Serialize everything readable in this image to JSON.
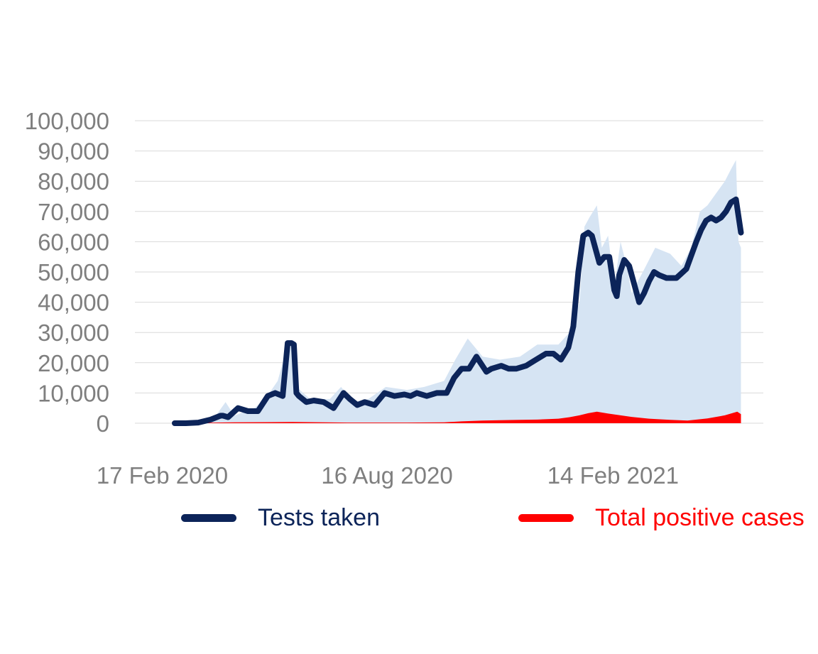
{
  "chart_data": {
    "type": "area",
    "title": "",
    "xlabel": "",
    "ylabel": "",
    "ylim": [
      0,
      100000
    ],
    "yticks": [
      "0",
      "10,000",
      "20,000",
      "30,000",
      "40,000",
      "50,000",
      "60,000",
      "70,000",
      "80,000",
      "90,000",
      "100,000"
    ],
    "ytick_values": [
      0,
      10000,
      20000,
      30000,
      40000,
      50000,
      60000,
      70000,
      80000,
      90000,
      100000
    ],
    "xlim": [
      "2020-01-26",
      "2021-06-15"
    ],
    "xticks": [
      {
        "date": "2020-02-17",
        "label": "17 Feb 2020"
      },
      {
        "date": "2020-08-16",
        "label": "16 Aug 2020"
      },
      {
        "date": "2021-02-14",
        "label": "14 Feb 2021"
      }
    ],
    "grid": true,
    "legend_position": "bottom",
    "series": [
      {
        "name": "Tests taken",
        "color": "#0c2459",
        "style": "line",
        "x": [
          "2020-02-27",
          "2020-03-07",
          "2020-03-17",
          "2020-03-27",
          "2020-04-04",
          "2020-04-06",
          "2020-04-10",
          "2020-04-18",
          "2020-04-26",
          "2020-05-04",
          "2020-05-12",
          "2020-05-18",
          "2020-05-24",
          "2020-05-28",
          "2020-05-31",
          "2020-06-02",
          "2020-06-04",
          "2020-06-06",
          "2020-06-12",
          "2020-06-18",
          "2020-06-26",
          "2020-07-04",
          "2020-07-12",
          "2020-07-17",
          "2020-07-23",
          "2020-07-29",
          "2020-08-06",
          "2020-08-14",
          "2020-08-22",
          "2020-08-30",
          "2020-09-04",
          "2020-09-09",
          "2020-09-17",
          "2020-09-25",
          "2020-10-03",
          "2020-10-09",
          "2020-10-15",
          "2020-10-21",
          "2020-10-27",
          "2020-11-04",
          "2020-11-08",
          "2020-11-16",
          "2020-11-22",
          "2020-11-28",
          "2020-12-06",
          "2020-12-14",
          "2020-12-22",
          "2020-12-28",
          "2021-01-03",
          "2021-01-09",
          "2021-01-13",
          "2021-01-17",
          "2021-01-21",
          "2021-01-25",
          "2021-01-28",
          "2021-02-01",
          "2021-02-03",
          "2021-02-07",
          "2021-02-11",
          "2021-02-15",
          "2021-02-17",
          "2021-02-19",
          "2021-02-23",
          "2021-02-27",
          "2021-03-03",
          "2021-03-07",
          "2021-03-11",
          "2021-03-15",
          "2021-03-19",
          "2021-03-23",
          "2021-03-29",
          "2021-04-06",
          "2021-04-14",
          "2021-04-22",
          "2021-04-26",
          "2021-04-30",
          "2021-05-04",
          "2021-05-08",
          "2021-05-12",
          "2021-05-16",
          "2021-05-20",
          "2021-05-24",
          "2021-05-28"
        ],
        "values": [
          0,
          0,
          200,
          1200,
          2500,
          2500,
          2000,
          5000,
          4000,
          4000,
          9000,
          10000,
          9000,
          26500,
          26500,
          26000,
          10000,
          9000,
          7000,
          7500,
          7000,
          5000,
          10000,
          8000,
          6000,
          7000,
          6000,
          10000,
          9000,
          9500,
          9000,
          10000,
          9000,
          10000,
          10000,
          15000,
          18000,
          18000,
          22000,
          17000,
          18000,
          19000,
          18000,
          18000,
          19000,
          21000,
          23000,
          23000,
          21000,
          25000,
          32000,
          50000,
          62000,
          63000,
          62000,
          56000,
          53000,
          55000,
          55000,
          44000,
          42000,
          49000,
          54000,
          52000,
          46000,
          40000,
          43000,
          47000,
          50000,
          49000,
          48000,
          48000,
          51000,
          60000,
          64000,
          67000,
          68000,
          67000,
          68000,
          70000,
          73000,
          74000,
          63000
        ]
      },
      {
        "name": "Total positive cases",
        "color": "#ff0000",
        "style": "area",
        "x": [
          "2020-02-27",
          "2020-04-15",
          "2020-06-01",
          "2020-07-15",
          "2020-09-01",
          "2020-10-01",
          "2020-10-15",
          "2020-11-01",
          "2020-11-15",
          "2020-12-01",
          "2020-12-15",
          "2021-01-01",
          "2021-01-10",
          "2021-01-18",
          "2021-01-25",
          "2021-02-01",
          "2021-02-10",
          "2021-02-20",
          "2021-03-01",
          "2021-03-15",
          "2021-04-01",
          "2021-04-15",
          "2021-05-01",
          "2021-05-15",
          "2021-05-25",
          "2021-05-28"
        ],
        "values": [
          0,
          300,
          400,
          200,
          200,
          300,
          600,
          900,
          1000,
          1100,
          1200,
          1500,
          2000,
          2600,
          3300,
          3800,
          3200,
          2600,
          2100,
          1500,
          1100,
          900,
          1600,
          2600,
          3800,
          3000
        ]
      },
      {
        "name": "",
        "color": "#d6e4f3",
        "style": "area",
        "x": [
          "2020-02-27",
          "2020-03-17",
          "2020-04-01",
          "2020-04-08",
          "2020-04-15",
          "2020-05-01",
          "2020-05-10",
          "2020-05-20",
          "2020-05-28",
          "2020-06-02",
          "2020-06-04",
          "2020-06-15",
          "2020-07-01",
          "2020-07-10",
          "2020-07-20",
          "2020-08-01",
          "2020-08-15",
          "2020-09-01",
          "2020-09-15",
          "2020-10-01",
          "2020-10-10",
          "2020-10-20",
          "2020-11-01",
          "2020-11-15",
          "2020-12-01",
          "2020-12-15",
          "2021-01-01",
          "2021-01-10",
          "2021-01-18",
          "2021-01-22",
          "2021-01-26",
          "2021-02-01",
          "2021-02-05",
          "2021-02-10",
          "2021-02-15",
          "2021-02-20",
          "2021-02-25",
          "2021-03-01",
          "2021-03-10",
          "2021-03-20",
          "2021-04-01",
          "2021-04-10",
          "2021-04-18",
          "2021-04-25",
          "2021-05-01",
          "2021-05-08",
          "2021-05-15",
          "2021-05-20",
          "2021-05-24",
          "2021-05-26",
          "2021-05-28"
        ],
        "values": [
          0,
          500,
          3000,
          7000,
          2500,
          5000,
          8000,
          14000,
          26000,
          26000,
          12000,
          8000,
          8000,
          12000,
          7000,
          8000,
          12000,
          11000,
          12000,
          14000,
          21000,
          28000,
          22000,
          21000,
          22000,
          26000,
          26000,
          30000,
          40000,
          65000,
          68000,
          72000,
          58000,
          62000,
          45000,
          60000,
          52000,
          43000,
          50000,
          58000,
          56000,
          52000,
          58000,
          70000,
          72000,
          76000,
          80000,
          84000,
          87000,
          60000,
          58000
        ]
      }
    ]
  }
}
